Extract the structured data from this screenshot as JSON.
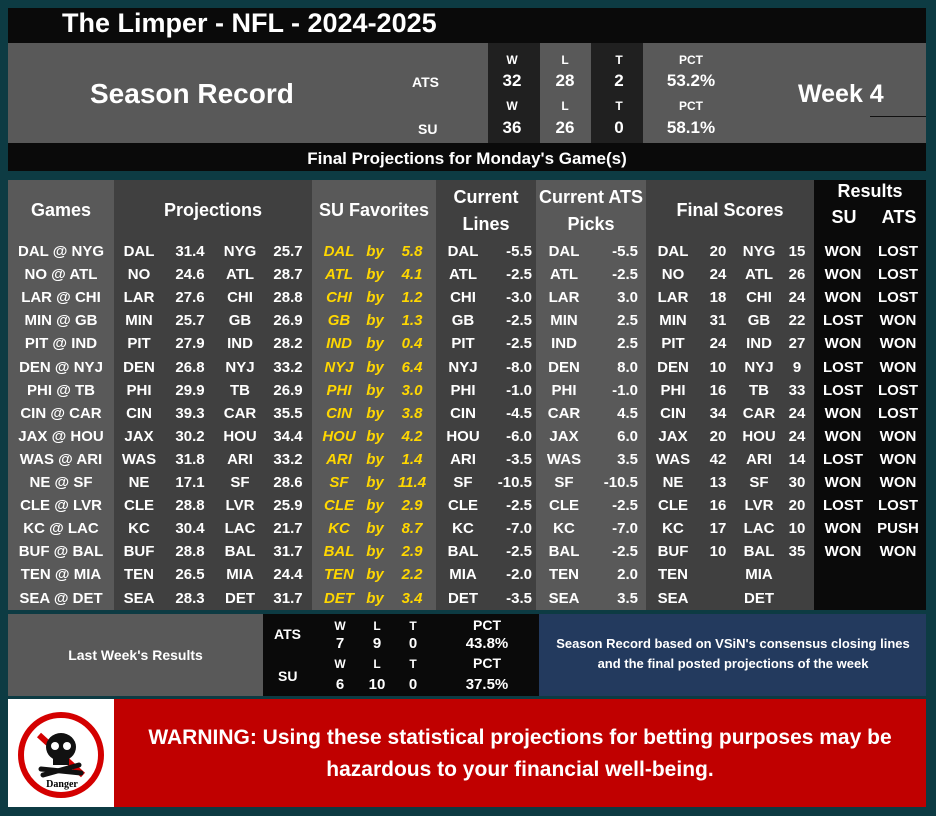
{
  "title": "The Limper - NFL - 2024-2025",
  "season_record": {
    "label": "Season Record",
    "week": "Week 4",
    "ats": {
      "label": "ATS",
      "w_hdr": "W",
      "l_hdr": "L",
      "t_hdr": "T",
      "pct_hdr": "PCT",
      "w": "32",
      "l": "28",
      "t": "2",
      "pct": "53.2%"
    },
    "su": {
      "label": "SU",
      "w_hdr": "W",
      "l_hdr": "L",
      "t_hdr": "T",
      "pct_hdr": "PCT",
      "w": "36",
      "l": "26",
      "t": "0",
      "pct": "58.1%"
    }
  },
  "banner": "Final Projections for Monday's Game(s)",
  "headers": {
    "games": "Games",
    "projections": "Projections",
    "su_favorites": "SU Favorites",
    "current_lines_1": "Current",
    "current_lines_2": "Lines",
    "ats_picks_1": "Current ATS",
    "ats_picks_2": "Picks",
    "final_scores": "Final Scores",
    "results": "Results",
    "results_su": "SU",
    "results_ats": "ATS"
  },
  "by_word": "by",
  "games": [
    {
      "game": "DAL @ NYG",
      "p1": "DAL",
      "s1": "31.4",
      "p2": "NYG",
      "s2": "25.7",
      "fav": "DAL",
      "margin": "5.8",
      "line_team": "DAL",
      "line": "-5.5",
      "pick_team": "DAL",
      "pick": "-5.5",
      "f1": "DAL",
      "fs1": "20",
      "f2": "NYG",
      "fs2": "15",
      "su": "WON",
      "ats": "LOST"
    },
    {
      "game": "NO @ ATL",
      "p1": "NO",
      "s1": "24.6",
      "p2": "ATL",
      "s2": "28.7",
      "fav": "ATL",
      "margin": "4.1",
      "line_team": "ATL",
      "line": "-2.5",
      "pick_team": "ATL",
      "pick": "-2.5",
      "f1": "NO",
      "fs1": "24",
      "f2": "ATL",
      "fs2": "26",
      "su": "WON",
      "ats": "LOST"
    },
    {
      "game": "LAR @ CHI",
      "p1": "LAR",
      "s1": "27.6",
      "p2": "CHI",
      "s2": "28.8",
      "fav": "CHI",
      "margin": "1.2",
      "line_team": "CHI",
      "line": "-3.0",
      "pick_team": "LAR",
      "pick": "3.0",
      "f1": "LAR",
      "fs1": "18",
      "f2": "CHI",
      "fs2": "24",
      "su": "WON",
      "ats": "LOST"
    },
    {
      "game": "MIN @ GB",
      "p1": "MIN",
      "s1": "25.7",
      "p2": "GB",
      "s2": "26.9",
      "fav": "GB",
      "margin": "1.3",
      "line_team": "GB",
      "line": "-2.5",
      "pick_team": "MIN",
      "pick": "2.5",
      "f1": "MIN",
      "fs1": "31",
      "f2": "GB",
      "fs2": "22",
      "su": "LOST",
      "ats": "WON"
    },
    {
      "game": "PIT @ IND",
      "p1": "PIT",
      "s1": "27.9",
      "p2": "IND",
      "s2": "28.2",
      "fav": "IND",
      "margin": "0.4",
      "line_team": "PIT",
      "line": "-2.5",
      "pick_team": "IND",
      "pick": "2.5",
      "f1": "PIT",
      "fs1": "24",
      "f2": "IND",
      "fs2": "27",
      "su": "WON",
      "ats": "WON"
    },
    {
      "game": "DEN @ NYJ",
      "p1": "DEN",
      "s1": "26.8",
      "p2": "NYJ",
      "s2": "33.2",
      "fav": "NYJ",
      "margin": "6.4",
      "line_team": "NYJ",
      "line": "-8.0",
      "pick_team": "DEN",
      "pick": "8.0",
      "f1": "DEN",
      "fs1": "10",
      "f2": "NYJ",
      "fs2": "9",
      "su": "LOST",
      "ats": "WON"
    },
    {
      "game": "PHI @ TB",
      "p1": "PHI",
      "s1": "29.9",
      "p2": "TB",
      "s2": "26.9",
      "fav": "PHI",
      "margin": "3.0",
      "line_team": "PHI",
      "line": "-1.0",
      "pick_team": "PHI",
      "pick": "-1.0",
      "f1": "PHI",
      "fs1": "16",
      "f2": "TB",
      "fs2": "33",
      "su": "LOST",
      "ats": "LOST"
    },
    {
      "game": "CIN @ CAR",
      "p1": "CIN",
      "s1": "39.3",
      "p2": "CAR",
      "s2": "35.5",
      "fav": "CIN",
      "margin": "3.8",
      "line_team": "CIN",
      "line": "-4.5",
      "pick_team": "CAR",
      "pick": "4.5",
      "f1": "CIN",
      "fs1": "34",
      "f2": "CAR",
      "fs2": "24",
      "su": "WON",
      "ats": "LOST"
    },
    {
      "game": "JAX @ HOU",
      "p1": "JAX",
      "s1": "30.2",
      "p2": "HOU",
      "s2": "34.4",
      "fav": "HOU",
      "margin": "4.2",
      "line_team": "HOU",
      "line": "-6.0",
      "pick_team": "JAX",
      "pick": "6.0",
      "f1": "JAX",
      "fs1": "20",
      "f2": "HOU",
      "fs2": "24",
      "su": "WON",
      "ats": "WON"
    },
    {
      "game": "WAS @ ARI",
      "p1": "WAS",
      "s1": "31.8",
      "p2": "ARI",
      "s2": "33.2",
      "fav": "ARI",
      "margin": "1.4",
      "line_team": "ARI",
      "line": "-3.5",
      "pick_team": "WAS",
      "pick": "3.5",
      "f1": "WAS",
      "fs1": "42",
      "f2": "ARI",
      "fs2": "14",
      "su": "LOST",
      "ats": "WON"
    },
    {
      "game": "NE @ SF",
      "p1": "NE",
      "s1": "17.1",
      "p2": "SF",
      "s2": "28.6",
      "fav": "SF",
      "margin": "11.4",
      "line_team": "SF",
      "line": "-10.5",
      "pick_team": "SF",
      "pick": "-10.5",
      "f1": "NE",
      "fs1": "13",
      "f2": "SF",
      "fs2": "30",
      "su": "WON",
      "ats": "WON"
    },
    {
      "game": "CLE @ LVR",
      "p1": "CLE",
      "s1": "28.8",
      "p2": "LVR",
      "s2": "25.9",
      "fav": "CLE",
      "margin": "2.9",
      "line_team": "CLE",
      "line": "-2.5",
      "pick_team": "CLE",
      "pick": "-2.5",
      "f1": "CLE",
      "fs1": "16",
      "f2": "LVR",
      "fs2": "20",
      "su": "LOST",
      "ats": "LOST"
    },
    {
      "game": "KC @ LAC",
      "p1": "KC",
      "s1": "30.4",
      "p2": "LAC",
      "s2": "21.7",
      "fav": "KC",
      "margin": "8.7",
      "line_team": "KC",
      "line": "-7.0",
      "pick_team": "KC",
      "pick": "-7.0",
      "f1": "KC",
      "fs1": "17",
      "f2": "LAC",
      "fs2": "10",
      "su": "WON",
      "ats": "PUSH"
    },
    {
      "game": "BUF @ BAL",
      "p1": "BUF",
      "s1": "28.8",
      "p2": "BAL",
      "s2": "31.7",
      "fav": "BAL",
      "margin": "2.9",
      "line_team": "BAL",
      "line": "-2.5",
      "pick_team": "BAL",
      "pick": "-2.5",
      "f1": "BUF",
      "fs1": "10",
      "f2": "BAL",
      "fs2": "35",
      "su": "WON",
      "ats": "WON"
    },
    {
      "game": "TEN @ MIA",
      "p1": "TEN",
      "s1": "26.5",
      "p2": "MIA",
      "s2": "24.4",
      "fav": "TEN",
      "margin": "2.2",
      "line_team": "MIA",
      "line": "-2.0",
      "pick_team": "TEN",
      "pick": "2.0",
      "f1": "TEN",
      "fs1": "",
      "f2": "MIA",
      "fs2": "",
      "su": "",
      "ats": ""
    },
    {
      "game": "SEA @ DET",
      "p1": "SEA",
      "s1": "28.3",
      "p2": "DET",
      "s2": "31.7",
      "fav": "DET",
      "margin": "3.4",
      "line_team": "DET",
      "line": "-3.5",
      "pick_team": "SEA",
      "pick": "3.5",
      "f1": "SEA",
      "fs1": "",
      "f2": "DET",
      "fs2": "",
      "su": "",
      "ats": ""
    }
  ],
  "last_week": {
    "label": "Last Week's Results",
    "ats": {
      "label": "ATS",
      "w_hdr": "W",
      "l_hdr": "L",
      "t_hdr": "T",
      "pct_hdr": "PCT",
      "w": "7",
      "l": "9",
      "t": "0",
      "pct": "43.8%"
    },
    "su": {
      "label": "SU",
      "w_hdr": "W",
      "l_hdr": "L",
      "t_hdr": "T",
      "pct_hdr": "PCT",
      "w": "6",
      "l": "10",
      "t": "0",
      "pct": "37.5%"
    }
  },
  "note": "Season Record based on VSiN's consensus closing lines and the final posted projections of the week",
  "warning": {
    "sign_text": "Danger",
    "text": "WARNING: Using these statistical projections for betting purposes may be hazardous to your financial well-being."
  },
  "colors": {
    "favorite": "#ffd700",
    "warning_bg": "#c00000",
    "note_bg": "#233a5e"
  }
}
